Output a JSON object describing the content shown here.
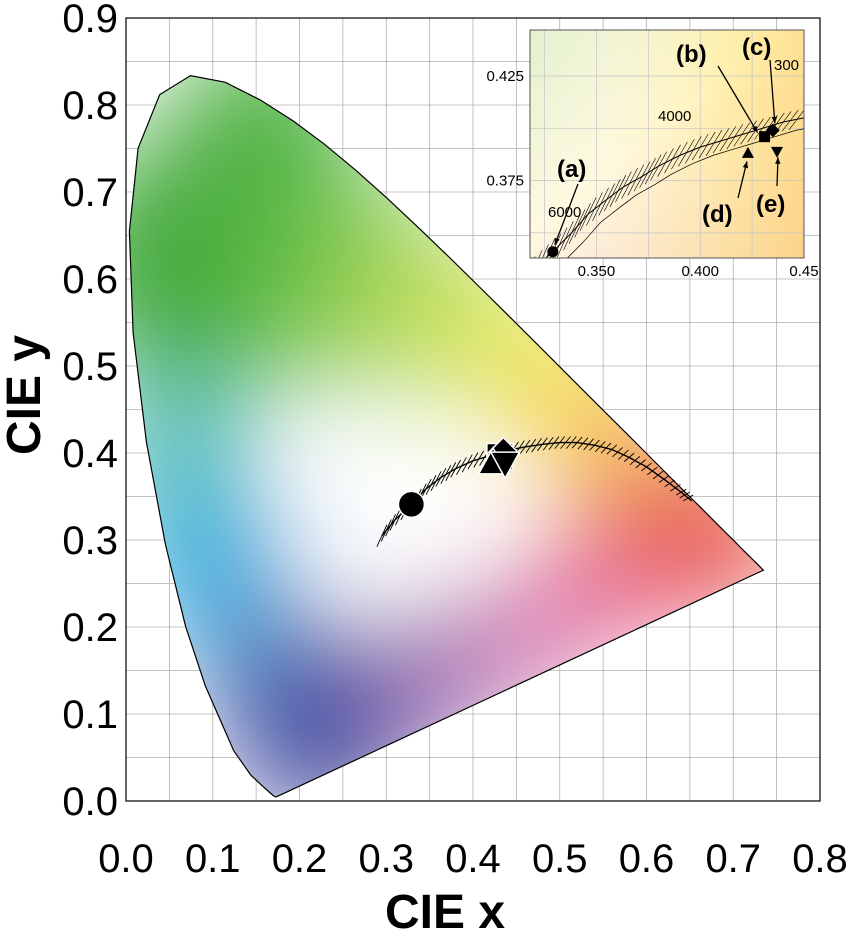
{
  "chart_data": {
    "type": "scatter",
    "title": "",
    "xlabel": "CIE x",
    "ylabel": "CIE y",
    "xlim": [
      0.0,
      0.8
    ],
    "ylim": [
      0.0,
      0.9
    ],
    "x_ticks": [
      "0.0",
      "0.1",
      "0.2",
      "0.3",
      "0.4",
      "0.5",
      "0.6",
      "0.7",
      "0.8"
    ],
    "y_ticks": [
      "0.0",
      "0.1",
      "0.2",
      "0.3",
      "0.4",
      "0.5",
      "0.6",
      "0.7",
      "0.8",
      "0.9"
    ],
    "grid": true,
    "background": "CIE 1931 chromaticity diagram (spectral locus) with Planckian locus and isotemperature lines",
    "points": [
      {
        "label": "(a)",
        "marker": "circle",
        "x": 0.329,
        "y": 0.341
      },
      {
        "label": "(b)",
        "marker": "square",
        "x": 0.431,
        "y": 0.396
      },
      {
        "label": "(c)",
        "marker": "diamond",
        "x": 0.435,
        "y": 0.399
      },
      {
        "label": "(d)",
        "marker": "triangle-up",
        "x": 0.423,
        "y": 0.388
      },
      {
        "label": "(e)",
        "marker": "triangle-down",
        "x": 0.437,
        "y": 0.389
      }
    ],
    "inset": {
      "xlim": [
        0.318,
        0.45
      ],
      "ylim": [
        0.338,
        0.447
      ],
      "x_ticks": [
        "0.350",
        "0.400",
        "0.45"
      ],
      "y_ticks": [
        "0.375",
        "0.425"
      ],
      "cct_labels": [
        "6000",
        "4000",
        "300"
      ],
      "point_labels": [
        "(a)",
        "(b)",
        "(c)",
        "(d)",
        "(e)"
      ]
    }
  },
  "colors": {
    "locus_outline": "#000000",
    "grid": "#b0b0b0",
    "markers": "#000000"
  }
}
